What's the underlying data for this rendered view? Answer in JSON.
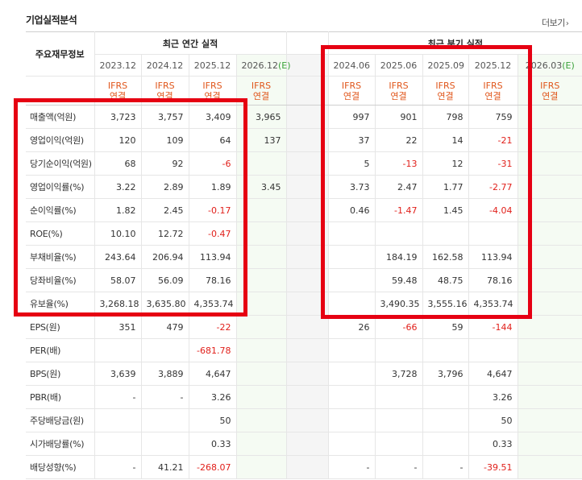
{
  "section": {
    "title": "기업실적분석",
    "more_label": "더보기",
    "more_icon": "chevron-right-icon"
  },
  "header": {
    "corner_label": "주요재무정보",
    "annual_group": "최근 연간 실적",
    "quarter_group": "최근 분기 실적",
    "annual_dates": [
      "2023.12",
      "2024.12",
      "2025.12",
      "2026.12"
    ],
    "annual_estimate_suffix": "(E)",
    "quarter_dates": [
      "2024.06",
      "2025.06",
      "2025.09",
      "2025.12"
    ],
    "quarter_trailing_date": "2026.03",
    "quarter_trailing_suffix": "(E)",
    "ifrs_top": "IFRS",
    "ifrs_bottom": "연결"
  },
  "rows": [
    {
      "label": "매출액(억원)",
      "annual": [
        "3,723",
        "3,757",
        "3,409",
        "3,965"
      ],
      "quarter": [
        "997",
        "901",
        "798",
        "759"
      ]
    },
    {
      "label": "영업이익(억원)",
      "annual": [
        "120",
        "109",
        "64",
        "137"
      ],
      "quarter": [
        "37",
        "22",
        "14",
        "-21"
      ]
    },
    {
      "label": "당기순이익(억원)",
      "annual": [
        "68",
        "92",
        "-6",
        ""
      ],
      "quarter": [
        "5",
        "-13",
        "12",
        "-31"
      ]
    },
    {
      "label": "영업이익률(%)",
      "annual": [
        "3.22",
        "2.89",
        "1.89",
        "3.45"
      ],
      "quarter": [
        "3.73",
        "2.47",
        "1.77",
        "-2.77"
      ]
    },
    {
      "label": "순이익률(%)",
      "annual": [
        "1.82",
        "2.45",
        "-0.17",
        ""
      ],
      "quarter": [
        "0.46",
        "-1.47",
        "1.45",
        "-4.04"
      ]
    },
    {
      "label": "ROE(%)",
      "annual": [
        "10.10",
        "12.72",
        "-0.47",
        ""
      ],
      "quarter": [
        "",
        "",
        "",
        ""
      ]
    },
    {
      "label": "부채비율(%)",
      "annual": [
        "243.64",
        "206.94",
        "113.94",
        ""
      ],
      "quarter": [
        "",
        "184.19",
        "162.58",
        "113.94"
      ]
    },
    {
      "label": "당좌비율(%)",
      "annual": [
        "58.07",
        "56.09",
        "78.16",
        ""
      ],
      "quarter": [
        "",
        "59.48",
        "48.75",
        "78.16"
      ]
    },
    {
      "label": "유보율(%)",
      "annual": [
        "3,268.18",
        "3,635.80",
        "4,353.74",
        ""
      ],
      "quarter": [
        "",
        "3,490.35",
        "3,555.16",
        "4,353.74"
      ]
    },
    {
      "label": "EPS(원)",
      "annual": [
        "351",
        "479",
        "-22",
        ""
      ],
      "quarter": [
        "26",
        "-66",
        "59",
        "-144"
      ]
    },
    {
      "label": "PER(배)",
      "annual": [
        "",
        "",
        "-681.78",
        ""
      ],
      "quarter": [
        "",
        "",
        "",
        ""
      ]
    },
    {
      "label": "BPS(원)",
      "annual": [
        "3,639",
        "3,889",
        "4,647",
        ""
      ],
      "quarter": [
        "",
        "3,728",
        "3,796",
        "4,647"
      ]
    },
    {
      "label": "PBR(배)",
      "annual": [
        "-",
        "-",
        "3.26",
        ""
      ],
      "quarter": [
        "",
        "",
        "",
        "3.26"
      ]
    },
    {
      "label": "주당배당금(원)",
      "annual": [
        "",
        "",
        "50",
        ""
      ],
      "quarter": [
        "",
        "",
        "",
        "50"
      ]
    },
    {
      "label": "시가배당률(%)",
      "annual": [
        "",
        "",
        "0.33",
        ""
      ],
      "quarter": [
        "",
        "",
        "",
        "0.33"
      ]
    },
    {
      "label": "배당성향(%)",
      "annual": [
        "-",
        "41.21",
        "-268.07",
        ""
      ],
      "quarter": [
        "-",
        "-",
        "-",
        "-39.51"
      ]
    }
  ],
  "colors": {
    "negative": "#e1201b",
    "ifrs": "#e0561b",
    "estimate": "#3aa23a",
    "highlight": "#e60012",
    "estimate_bg": "#f5fbf3",
    "gap_bg": "#f5f5f5"
  }
}
